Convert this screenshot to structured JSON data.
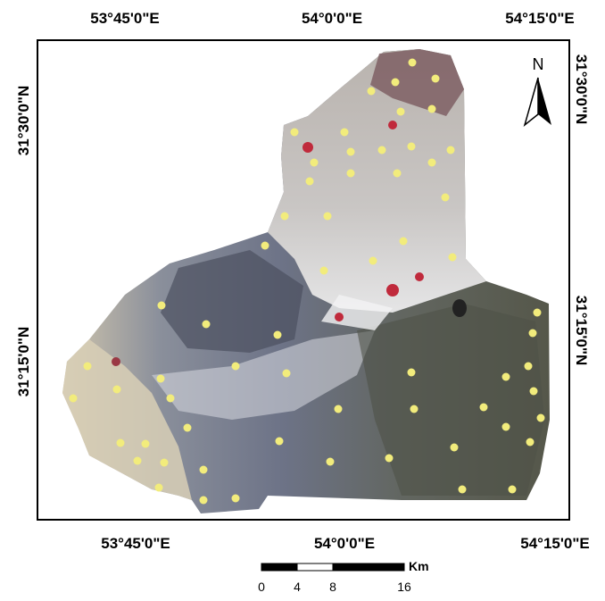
{
  "grid_labels": {
    "top": [
      "53°45'0\"E",
      "54°0'0\"E",
      "54°15'0\"E"
    ],
    "bottom": [
      "53°45'0\"E",
      "54°0'0\"E",
      "54°15'0\"E"
    ],
    "left": [
      "31°30'0\"N",
      "31°15'0\"N"
    ],
    "right": [
      "31°30'0\"N",
      "31°15'0\"N"
    ]
  },
  "north_arrow": "N",
  "scale_bar": {
    "unit": "Km",
    "ticks": [
      0,
      4,
      8,
      16
    ]
  }
}
